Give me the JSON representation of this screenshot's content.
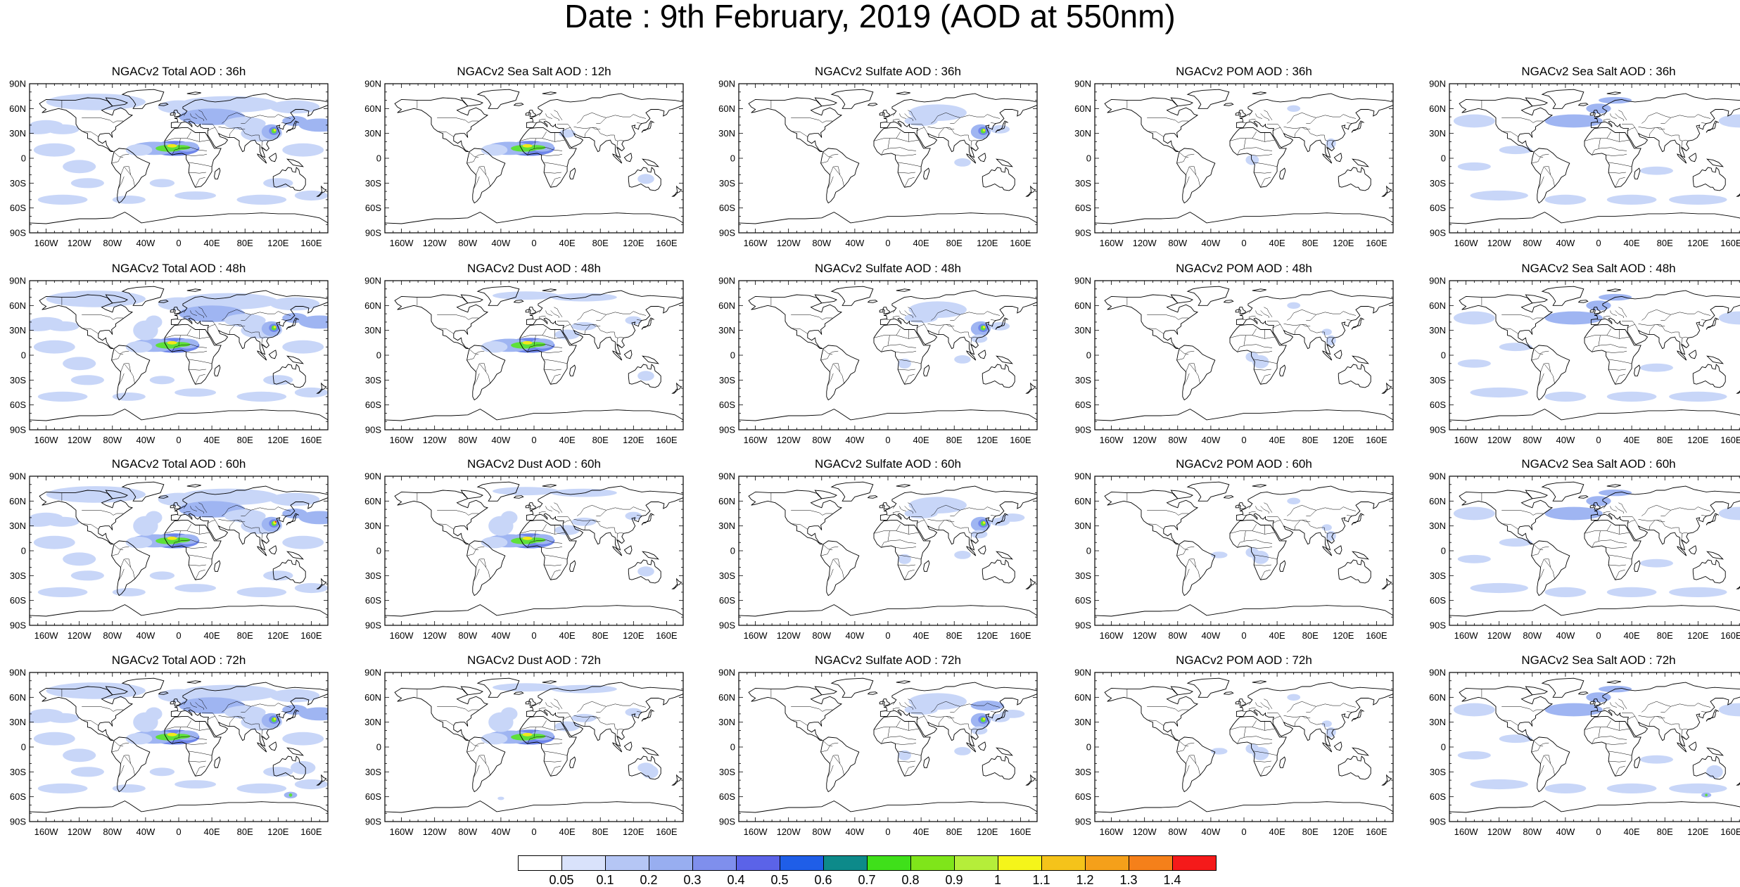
{
  "title": "Date : 9th February, 2019 (AOD at 550nm)",
  "panel_rows": [
    [
      "NGACv2 Total AOD : 36h",
      "NGACv2 Sea Salt  AOD : 12h",
      "NGACv2 Sulfate AOD : 36h",
      "NGACv2 POM AOD : 36h",
      "NGACv2 Sea Salt  AOD : 36h"
    ],
    [
      "NGACv2 Total AOD : 48h",
      "NGACv2 Dust AOD : 48h",
      "NGACv2 Sulfate AOD : 48h",
      "NGACv2 POM AOD : 48h",
      "NGACv2 Sea Salt  AOD : 48h"
    ],
    [
      "NGACv2 Total AOD : 60h",
      "NGACv2 Dust AOD : 60h",
      "NGACv2 Sulfate AOD : 60h",
      "NGACv2 POM AOD : 60h",
      "NGACv2 Sea Salt  AOD : 60h"
    ],
    [
      "NGACv2 Total AOD : 72h",
      "NGACv2 Dust AOD : 72h",
      "NGACv2 Sulfate AOD : 72h",
      "NGACv2 POM AOD : 72h",
      "NGACv2 Sea Salt  AOD : 72h"
    ]
  ],
  "lat_ticks": [
    "90N",
    "60N",
    "30N",
    "0",
    "30S",
    "60S",
    "90S"
  ],
  "lon_ticks": [
    "160W",
    "120W",
    "80W",
    "40W",
    "0",
    "40E",
    "80E",
    "120E",
    "160E"
  ],
  "colorbar": {
    "labels": [
      "0.05",
      "0.1",
      "0.2",
      "0.3",
      "0.4",
      "0.5",
      "0.6",
      "0.7",
      "0.8",
      "0.9",
      "1",
      "1.1",
      "1.2",
      "1.3",
      "1.4"
    ],
    "colors": [
      "#ffffff",
      "#d9e2fb",
      "#b5c6f5",
      "#98aef0",
      "#7f8fed",
      "#5b63e8",
      "#1f5ee8",
      "#0d8a8a",
      "#3fe01a",
      "#7fe51a",
      "#b5ee3a",
      "#f5f51a",
      "#f5c31a",
      "#f5a01a",
      "#f5801a",
      "#f51a1a"
    ]
  },
  "aerosol_colors": {
    "light": "#c8d6f8",
    "medium": "#9fb5f2",
    "dark": "#6f86ea",
    "green": "#5ee03a",
    "yellow": "#f2e81a",
    "red": "#e8321a"
  }
}
